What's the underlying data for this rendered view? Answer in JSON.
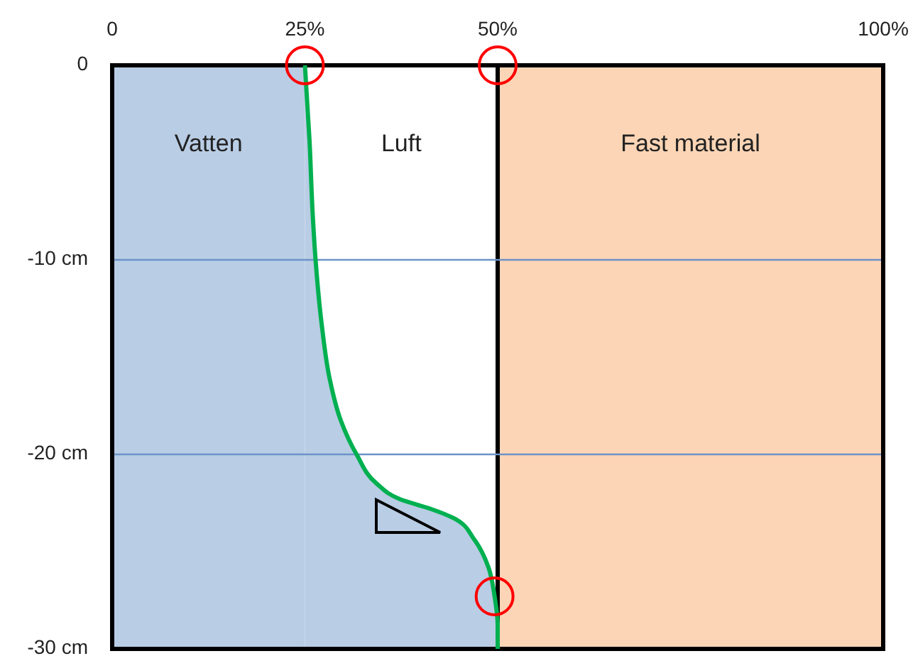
{
  "chart_data": {
    "type": "line",
    "series": [
      {
        "color": "#00b050",
        "x": [
          25,
          25.6,
          26.0,
          26.4,
          27.2,
          28.2,
          29.6,
          31.7,
          34.3,
          37.3,
          41.3,
          44.4,
          47.0,
          48.8,
          49.6,
          50,
          50
        ],
        "values": [
          0,
          -3.9,
          -7.6,
          -10.1,
          -13.4,
          -16.1,
          -18.2,
          -20.0,
          -21.5,
          -22.3,
          -22.8,
          -23.3,
          -24.4,
          -25.8,
          -27.3,
          -28.8,
          -30
        ],
        "lower": [
          -30,
          -30,
          -30,
          -30,
          -30,
          -30,
          -30,
          -30,
          -30,
          -30,
          -30,
          -30,
          -30,
          -30,
          -30,
          -30,
          -30
        ],
        "upper": [
          0,
          -3.9,
          -7.6,
          -10.1,
          -13.4,
          -16.1,
          -18.2,
          -20.0,
          -21.5,
          -22.3,
          -22.8,
          -23.3,
          -24.4,
          -25.8,
          -27.3,
          -28.8,
          -30
        ]
      },
      {
        "type": "scatter",
        "color": "#ff0000",
        "marker": "circle",
        "x": [
          25,
          50,
          49.6
        ],
        "values": [
          0,
          0,
          -27.3
        ]
      }
    ],
    "xlim": [
      0,
      100
    ],
    "xticks": [
      0,
      {
        "value": 25,
        "label": "25%"
      },
      {
        "value": 50,
        "label": "50%"
      },
      {
        "value": 100,
        "label": "100%"
      }
    ],
    "ylim": [
      -30,
      0
    ],
    "yticks": [
      0,
      {
        "value": -10,
        "label": "-10 cm"
      },
      {
        "value": -20,
        "label": "-20 cm"
      },
      {
        "value": -30,
        "label": "-30 cm"
      }
    ],
    "grid": "y",
    "bands": [
      {
        "axis": "x",
        "from": 0,
        "to": 25,
        "color": "#b9cde5"
      },
      {
        "axis": "x",
        "from": 50,
        "to": 100,
        "label": "Fast material",
        "color": "#fbd5b5"
      }
    ],
    "annotations": [
      "Vatten",
      "Luft"
    ]
  }
}
